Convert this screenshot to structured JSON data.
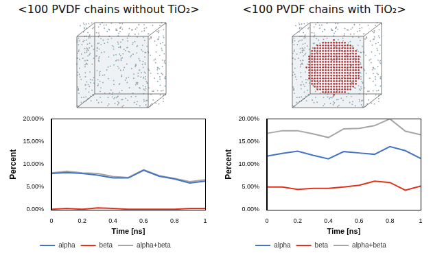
{
  "chart_data": [
    {
      "type": "line",
      "title": "<100 PVDF chains without TiO₂>",
      "x": [
        0,
        0.1,
        0.2,
        0.3,
        0.4,
        0.5,
        0.6,
        0.7,
        0.8,
        0.9,
        1
      ],
      "series": [
        {
          "name": "alpha",
          "color": "#4472c4",
          "values": [
            8.0,
            8.2,
            8.0,
            7.6,
            7.0,
            7.0,
            8.7,
            7.4,
            6.8,
            5.9,
            6.3
          ]
        },
        {
          "name": "beta",
          "color": "#e0321c",
          "values": [
            0.1,
            0.3,
            0.1,
            0.4,
            0.3,
            0.1,
            0.1,
            0.1,
            0.1,
            0.3,
            0.3
          ]
        },
        {
          "name": "alpha+beta",
          "color": "#a5a5a5",
          "values": [
            8.1,
            8.5,
            8.1,
            8.0,
            7.3,
            7.1,
            8.8,
            7.5,
            6.9,
            6.2,
            6.6
          ]
        }
      ],
      "x_label": "Time [ns]",
      "y_label": "Percent",
      "xlim": [
        0,
        1
      ],
      "xticks": [
        0,
        0.2,
        0.4,
        0.6,
        0.8,
        1
      ],
      "ylim": [
        0,
        20
      ],
      "yticks": [
        {
          "value": 0,
          "label": "0.00%"
        },
        {
          "value": 5,
          "label": "5.00%"
        },
        {
          "value": 10,
          "label": "10.00%"
        },
        {
          "value": 15,
          "label": "15.00%"
        },
        {
          "value": 20,
          "label": "20.00%"
        }
      ],
      "grid": false,
      "legend": "bottom"
    },
    {
      "type": "line",
      "title": "<100 PVDF chains with TiO₂>",
      "x": [
        0,
        0.1,
        0.2,
        0.3,
        0.4,
        0.5,
        0.6,
        0.7,
        0.8,
        0.9,
        1
      ],
      "series": [
        {
          "name": "alpha",
          "color": "#4472c4",
          "values": [
            11.8,
            12.4,
            12.9,
            12.0,
            11.2,
            12.8,
            12.5,
            12.2,
            13.9,
            13.0,
            11.3
          ]
        },
        {
          "name": "beta",
          "color": "#e0321c",
          "values": [
            5.0,
            5.0,
            4.5,
            4.7,
            4.7,
            5.0,
            5.4,
            6.3,
            6.0,
            4.3,
            5.2
          ]
        },
        {
          "name": "alpha+beta",
          "color": "#a5a5a5",
          "values": [
            16.8,
            17.4,
            17.4,
            16.7,
            15.9,
            17.8,
            17.9,
            18.5,
            20.0,
            17.3,
            16.5
          ]
        }
      ],
      "x_label": "Time [ns]",
      "y_label": "Percent",
      "xlim": [
        0,
        1
      ],
      "xticks": [
        0,
        0.2,
        0.4,
        0.6,
        0.8,
        1
      ],
      "ylim": [
        0,
        20
      ],
      "yticks": [
        {
          "value": 0,
          "label": "0.00%"
        },
        {
          "value": 5,
          "label": "5.00%"
        },
        {
          "value": 10,
          "label": "10.00%"
        },
        {
          "value": 15,
          "label": "15.00%"
        },
        {
          "value": 20,
          "label": "20.00%"
        }
      ],
      "grid": false,
      "legend": "bottom"
    }
  ]
}
